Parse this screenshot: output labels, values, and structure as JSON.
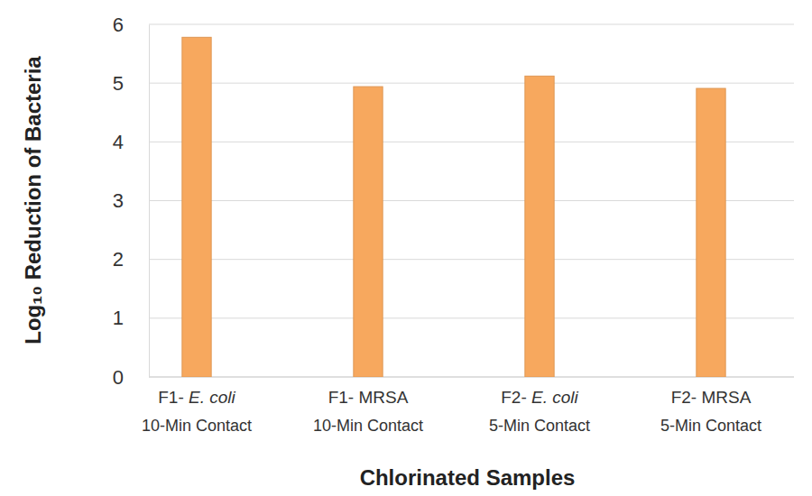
{
  "chart_data": {
    "type": "bar",
    "categories": [
      [
        "F1- E. coli",
        "10-Min Contact"
      ],
      [
        "F1- MRSA",
        "10-Min Contact"
      ],
      [
        "F2- E. coli",
        "5-Min Contact"
      ],
      [
        "F2- MRSA",
        "5-Min Contact"
      ]
    ],
    "values": [
      5.78,
      4.94,
      5.12,
      4.91
    ],
    "color": "#f7a85e",
    "x_label": "Chlorinated Samples",
    "y_label": "Log₁₀ Reduction of Bacteria",
    "ylim": [
      0,
      6
    ],
    "yticks": [
      0,
      1,
      2,
      3,
      4,
      5,
      6
    ],
    "grid": true
  }
}
